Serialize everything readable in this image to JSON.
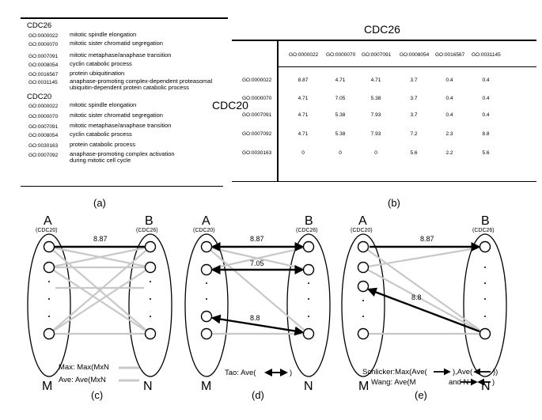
{
  "panel_a": {
    "groups": [
      {
        "name": "CDC26",
        "items": [
          {
            "go": "GO:0000022",
            "term": "mitotic spindle elongation"
          },
          {
            "go": "GO:0000070",
            "term": "mitotic sister chromatid segregation"
          },
          {
            "go": "GO:0007091",
            "term": "mitotic metaphase/anaphase transition"
          },
          {
            "go": "GO:0008054",
            "term": "cyclin catabolic process"
          },
          {
            "go": "GO:0016567",
            "term": "protein ubiquitination"
          },
          {
            "go": "GO:0031145",
            "term": "anaphase-promoting complex-dependent proteasomal\nubiquitin-dependent protein catabolic process"
          }
        ]
      },
      {
        "name": "CDC20",
        "items": [
          {
            "go": "GO:0000022",
            "term": "mitotic spindle elongation"
          },
          {
            "go": "GO:0000070",
            "term": "mitotic sister chromatid segregation"
          },
          {
            "go": "GO:0007091",
            "term": "mitotic metaphase/anaphase transition"
          },
          {
            "go": "GO:0008054",
            "term": "cyclin catabolic process"
          },
          {
            "go": "GO:0030163",
            "term": "protein catabolic process"
          },
          {
            "go": "GO:0007092",
            "term": "anaphase-promoting complex activation\nduring mitotic cell cycle"
          }
        ]
      }
    ],
    "caption": "(a)"
  },
  "panel_b": {
    "col_title": "CDC26",
    "row_title": "CDC20",
    "columns": [
      "GO:0000022",
      "GO:0000070",
      "GO:0007091",
      "GO:0008054",
      "GO:0016567",
      "GO:0031145"
    ],
    "rows": [
      {
        "go": "GO:0000022",
        "values": [
          "8.87",
          "4.71",
          "4.71",
          "3.7",
          "0.4",
          "0.4"
        ]
      },
      {
        "go": "GO:0000070",
        "values": [
          "4.71",
          "7.05",
          "5.38",
          "3.7",
          "0.4",
          "0.4"
        ]
      },
      {
        "go": "GO:0007091",
        "values": [
          "4.71",
          "5.38",
          "7.93",
          "3.7",
          "0.4",
          "0.4"
        ]
      },
      {
        "go": "GO:0007092",
        "values": [
          "4.71",
          "5.38",
          "7.93",
          "7.2",
          "2.3",
          "8.8"
        ]
      },
      {
        "go": "GO:0030163",
        "values": [
          "0",
          "0",
          "0",
          "5.6",
          "2.2",
          "5.6"
        ]
      }
    ],
    "caption": "(b)"
  },
  "panel_c": {
    "left_label": "A",
    "left_sub": "(CDC20)",
    "right_label": "B",
    "right_sub": "(CDC26)",
    "edge_value": "8.87",
    "legend_max": "Max: Max(MxN",
    "legend_ave": "Ave: Ave(MxN",
    "m_label": "M",
    "n_label": "N",
    "caption": "(c)"
  },
  "panel_d": {
    "left_label": "A",
    "left_sub": "(CDC20)",
    "right_label": "B",
    "right_sub": "(CDC26)",
    "edge_values": [
      "8.87",
      "7.05",
      "8.8"
    ],
    "legend_tao_prefix": "Tao: Ave(",
    "legend_tao_suffix": ")",
    "m_label": "M",
    "n_label": "N",
    "caption": "(d)"
  },
  "panel_e": {
    "left_label": "A",
    "left_sub": "(CDC20)",
    "right_label": "B",
    "right_sub": "(CDC26)",
    "edge_values": [
      "8.87",
      "8.8"
    ],
    "legend_schlicker_prefix": "Schlicker:Max(Ave(",
    "legend_schlicker_mid": "),Ave(",
    "legend_schlicker_suffix": "))",
    "legend_wang_prefix": "Wang: Ave(M",
    "legend_wang_mid": "and N",
    "legend_wang_suffix": ")",
    "m_label": "M",
    "n_label": "N",
    "caption": "(e)"
  },
  "colors": {
    "edge_gray": "#c8c8c8",
    "ink": "#000000"
  }
}
